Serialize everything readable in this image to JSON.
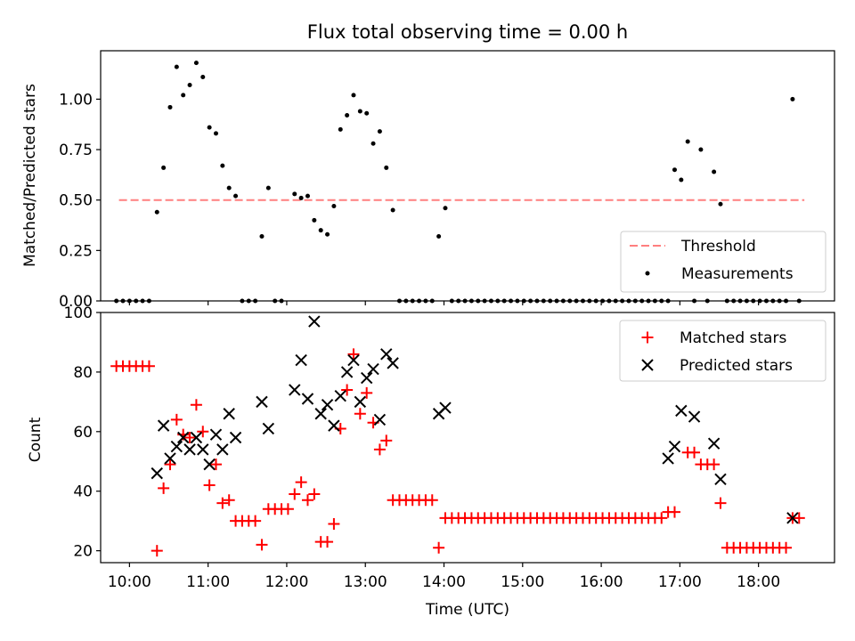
{
  "figure": {
    "title": "Flux total observing time = 0.00 h",
    "xlabel": "Time (UTC)",
    "xticks": [
      "10:00",
      "11:00",
      "12:00",
      "13:00",
      "14:00",
      "15:00",
      "16:00",
      "17:00",
      "18:00"
    ]
  },
  "chart_data": [
    {
      "type": "scatter",
      "title": "Flux total observing time = 0.00 h",
      "xlabel": "",
      "ylabel": "Matched/Predicted stars",
      "xlim": [
        "09:38",
        "18:58"
      ],
      "ylim": [
        0,
        1.24
      ],
      "yticks": [
        "0.00",
        "0.25",
        "0.50",
        "0.75",
        "1.00"
      ],
      "legend_position": "lower-right",
      "threshold": {
        "name": "Threshold",
        "value": 0.5,
        "x_start": "09:52",
        "x_end": "18:35",
        "style": "dashed",
        "color": "#ff7f7f"
      },
      "series": [
        {
          "name": "Measurements",
          "marker": "dot",
          "color": "#000000",
          "points": [
            [
              "09:50",
              0
            ],
            [
              "09:55",
              0
            ],
            [
              "10:00",
              0
            ],
            [
              "10:05",
              0
            ],
            [
              "10:10",
              0
            ],
            [
              "10:15",
              0
            ],
            [
              "10:21",
              0.44
            ],
            [
              "10:26",
              0.66
            ],
            [
              "10:31",
              0.96
            ],
            [
              "10:36",
              1.16
            ],
            [
              "10:41",
              1.02
            ],
            [
              "10:46",
              1.07
            ],
            [
              "10:51",
              1.18
            ],
            [
              "10:56",
              1.11
            ],
            [
              "11:01",
              0.86
            ],
            [
              "11:06",
              0.83
            ],
            [
              "11:11",
              0.67
            ],
            [
              "11:16",
              0.56
            ],
            [
              "11:21",
              0.52
            ],
            [
              "11:26",
              0
            ],
            [
              "11:31",
              0
            ],
            [
              "11:36",
              0
            ],
            [
              "11:41",
              0.32
            ],
            [
              "11:46",
              0.56
            ],
            [
              "11:51",
              0
            ],
            [
              "11:56",
              0
            ],
            [
              "12:06",
              0.53
            ],
            [
              "12:11",
              0.51
            ],
            [
              "12:16",
              0.52
            ],
            [
              "12:21",
              0.4
            ],
            [
              "12:26",
              0.35
            ],
            [
              "12:31",
              0.33
            ],
            [
              "12:36",
              0.47
            ],
            [
              "12:41",
              0.85
            ],
            [
              "12:46",
              0.92
            ],
            [
              "12:51",
              1.02
            ],
            [
              "12:56",
              0.94
            ],
            [
              "13:01",
              0.93
            ],
            [
              "13:06",
              0.78
            ],
            [
              "13:11",
              0.84
            ],
            [
              "13:16",
              0.66
            ],
            [
              "13:21",
              0.45
            ],
            [
              "13:26",
              0
            ],
            [
              "13:31",
              0
            ],
            [
              "13:36",
              0
            ],
            [
              "13:41",
              0
            ],
            [
              "13:46",
              0
            ],
            [
              "13:51",
              0
            ],
            [
              "13:56",
              0.32
            ],
            [
              "14:01",
              0.46
            ],
            [
              "14:06",
              0
            ],
            [
              "14:11",
              0
            ],
            [
              "14:16",
              0
            ],
            [
              "14:21",
              0
            ],
            [
              "14:26",
              0
            ],
            [
              "14:31",
              0
            ],
            [
              "14:36",
              0
            ],
            [
              "14:41",
              0
            ],
            [
              "14:46",
              0
            ],
            [
              "14:51",
              0
            ],
            [
              "14:56",
              0
            ],
            [
              "15:01",
              0
            ],
            [
              "15:06",
              0
            ],
            [
              "15:11",
              0
            ],
            [
              "15:16",
              0
            ],
            [
              "15:21",
              0
            ],
            [
              "15:26",
              0
            ],
            [
              "15:31",
              0
            ],
            [
              "15:36",
              0
            ],
            [
              "15:41",
              0
            ],
            [
              "15:46",
              0
            ],
            [
              "15:51",
              0
            ],
            [
              "15:56",
              0
            ],
            [
              "16:01",
              0
            ],
            [
              "16:06",
              0
            ],
            [
              "16:11",
              0
            ],
            [
              "16:16",
              0
            ],
            [
              "16:21",
              0
            ],
            [
              "16:26",
              0
            ],
            [
              "16:31",
              0
            ],
            [
              "16:36",
              0
            ],
            [
              "16:41",
              0
            ],
            [
              "16:46",
              0
            ],
            [
              "16:51",
              0
            ],
            [
              "16:56",
              0.65
            ],
            [
              "17:01",
              0.6
            ],
            [
              "17:06",
              0.79
            ],
            [
              "17:11",
              0
            ],
            [
              "17:16",
              0.75
            ],
            [
              "17:21",
              0
            ],
            [
              "17:26",
              0.64
            ],
            [
              "17:31",
              0.48
            ],
            [
              "17:36",
              0
            ],
            [
              "17:41",
              0
            ],
            [
              "17:46",
              0
            ],
            [
              "17:51",
              0
            ],
            [
              "17:56",
              0
            ],
            [
              "18:01",
              0
            ],
            [
              "18:06",
              0
            ],
            [
              "18:11",
              0
            ],
            [
              "18:16",
              0
            ],
            [
              "18:21",
              0
            ],
            [
              "18:26",
              1.0
            ],
            [
              "18:31",
              0
            ]
          ]
        }
      ]
    },
    {
      "type": "scatter",
      "title": "",
      "xlabel": "Time (UTC)",
      "ylabel": "Count",
      "xlim": [
        "09:38",
        "18:58"
      ],
      "ylim": [
        16,
        100
      ],
      "yticks": [
        "20",
        "40",
        "60",
        "80",
        "100"
      ],
      "legend_position": "upper-right",
      "series": [
        {
          "name": "Matched stars",
          "marker": "plus",
          "color": "#ff0000",
          "points": [
            [
              "09:50",
              82
            ],
            [
              "09:55",
              82
            ],
            [
              "10:00",
              82
            ],
            [
              "10:05",
              82
            ],
            [
              "10:10",
              82
            ],
            [
              "10:15",
              82
            ],
            [
              "10:21",
              20
            ],
            [
              "10:26",
              41
            ],
            [
              "10:31",
              49
            ],
            [
              "10:36",
              64
            ],
            [
              "10:41",
              59
            ],
            [
              "10:46",
              58
            ],
            [
              "10:51",
              69
            ],
            [
              "10:56",
              60
            ],
            [
              "11:01",
              42
            ],
            [
              "11:06",
              49
            ],
            [
              "11:11",
              36
            ],
            [
              "11:16",
              37
            ],
            [
              "11:21",
              30
            ],
            [
              "11:26",
              30
            ],
            [
              "11:31",
              30
            ],
            [
              "11:36",
              30
            ],
            [
              "11:41",
              22
            ],
            [
              "11:46",
              34
            ],
            [
              "11:51",
              34
            ],
            [
              "11:56",
              34
            ],
            [
              "12:01",
              34
            ],
            [
              "12:06",
              39
            ],
            [
              "12:11",
              43
            ],
            [
              "12:16",
              37
            ],
            [
              "12:21",
              39
            ],
            [
              "12:26",
              23
            ],
            [
              "12:31",
              23
            ],
            [
              "12:36",
              29
            ],
            [
              "12:41",
              61
            ],
            [
              "12:46",
              74
            ],
            [
              "12:51",
              86
            ],
            [
              "12:56",
              66
            ],
            [
              "13:01",
              73
            ],
            [
              "13:06",
              63
            ],
            [
              "13:11",
              54
            ],
            [
              "13:16",
              57
            ],
            [
              "13:21",
              37
            ],
            [
              "13:26",
              37
            ],
            [
              "13:31",
              37
            ],
            [
              "13:36",
              37
            ],
            [
              "13:41",
              37
            ],
            [
              "13:46",
              37
            ],
            [
              "13:51",
              37
            ],
            [
              "13:56",
              21
            ],
            [
              "14:01",
              31
            ],
            [
              "14:06",
              31
            ],
            [
              "14:11",
              31
            ],
            [
              "14:16",
              31
            ],
            [
              "14:21",
              31
            ],
            [
              "14:26",
              31
            ],
            [
              "14:31",
              31
            ],
            [
              "14:36",
              31
            ],
            [
              "14:41",
              31
            ],
            [
              "14:46",
              31
            ],
            [
              "14:51",
              31
            ],
            [
              "14:56",
              31
            ],
            [
              "15:01",
              31
            ],
            [
              "15:06",
              31
            ],
            [
              "15:11",
              31
            ],
            [
              "15:16",
              31
            ],
            [
              "15:21",
              31
            ],
            [
              "15:26",
              31
            ],
            [
              "15:31",
              31
            ],
            [
              "15:36",
              31
            ],
            [
              "15:41",
              31
            ],
            [
              "15:46",
              31
            ],
            [
              "15:51",
              31
            ],
            [
              "15:56",
              31
            ],
            [
              "16:01",
              31
            ],
            [
              "16:06",
              31
            ],
            [
              "16:11",
              31
            ],
            [
              "16:16",
              31
            ],
            [
              "16:21",
              31
            ],
            [
              "16:26",
              31
            ],
            [
              "16:31",
              31
            ],
            [
              "16:36",
              31
            ],
            [
              "16:41",
              31
            ],
            [
              "16:46",
              31
            ],
            [
              "16:51",
              33
            ],
            [
              "16:56",
              33
            ],
            [
              "17:06",
              53
            ],
            [
              "17:11",
              53
            ],
            [
              "17:16",
              49
            ],
            [
              "17:21",
              49
            ],
            [
              "17:26",
              49
            ],
            [
              "17:31",
              36
            ],
            [
              "17:36",
              21
            ],
            [
              "17:41",
              21
            ],
            [
              "17:46",
              21
            ],
            [
              "17:51",
              21
            ],
            [
              "17:56",
              21
            ],
            [
              "18:01",
              21
            ],
            [
              "18:06",
              21
            ],
            [
              "18:11",
              21
            ],
            [
              "18:16",
              21
            ],
            [
              "18:21",
              21
            ],
            [
              "18:26",
              31
            ],
            [
              "18:31",
              31
            ]
          ]
        },
        {
          "name": "Predicted stars",
          "marker": "x",
          "color": "#000000",
          "points": [
            [
              "10:21",
              46
            ],
            [
              "10:26",
              62
            ],
            [
              "10:31",
              51
            ],
            [
              "10:36",
              55
            ],
            [
              "10:41",
              58
            ],
            [
              "10:46",
              54
            ],
            [
              "10:51",
              58
            ],
            [
              "10:56",
              54
            ],
            [
              "11:01",
              49
            ],
            [
              "11:06",
              59
            ],
            [
              "11:11",
              54
            ],
            [
              "11:16",
              66
            ],
            [
              "11:21",
              58
            ],
            [
              "11:41",
              70
            ],
            [
              "11:46",
              61
            ],
            [
              "12:06",
              74
            ],
            [
              "12:11",
              84
            ],
            [
              "12:16",
              71
            ],
            [
              "12:21",
              97
            ],
            [
              "12:26",
              66
            ],
            [
              "12:31",
              69
            ],
            [
              "12:36",
              62
            ],
            [
              "12:41",
              72
            ],
            [
              "12:46",
              80
            ],
            [
              "12:51",
              84
            ],
            [
              "12:56",
              70
            ],
            [
              "13:01",
              78
            ],
            [
              "13:06",
              81
            ],
            [
              "13:11",
              64
            ],
            [
              "13:16",
              86
            ],
            [
              "13:21",
              83
            ],
            [
              "13:56",
              66
            ],
            [
              "14:01",
              68
            ],
            [
              "16:51",
              51
            ],
            [
              "16:56",
              55
            ],
            [
              "17:01",
              67
            ],
            [
              "17:11",
              65
            ],
            [
              "17:26",
              56
            ],
            [
              "17:31",
              44
            ],
            [
              "18:26",
              31
            ]
          ]
        }
      ]
    }
  ]
}
